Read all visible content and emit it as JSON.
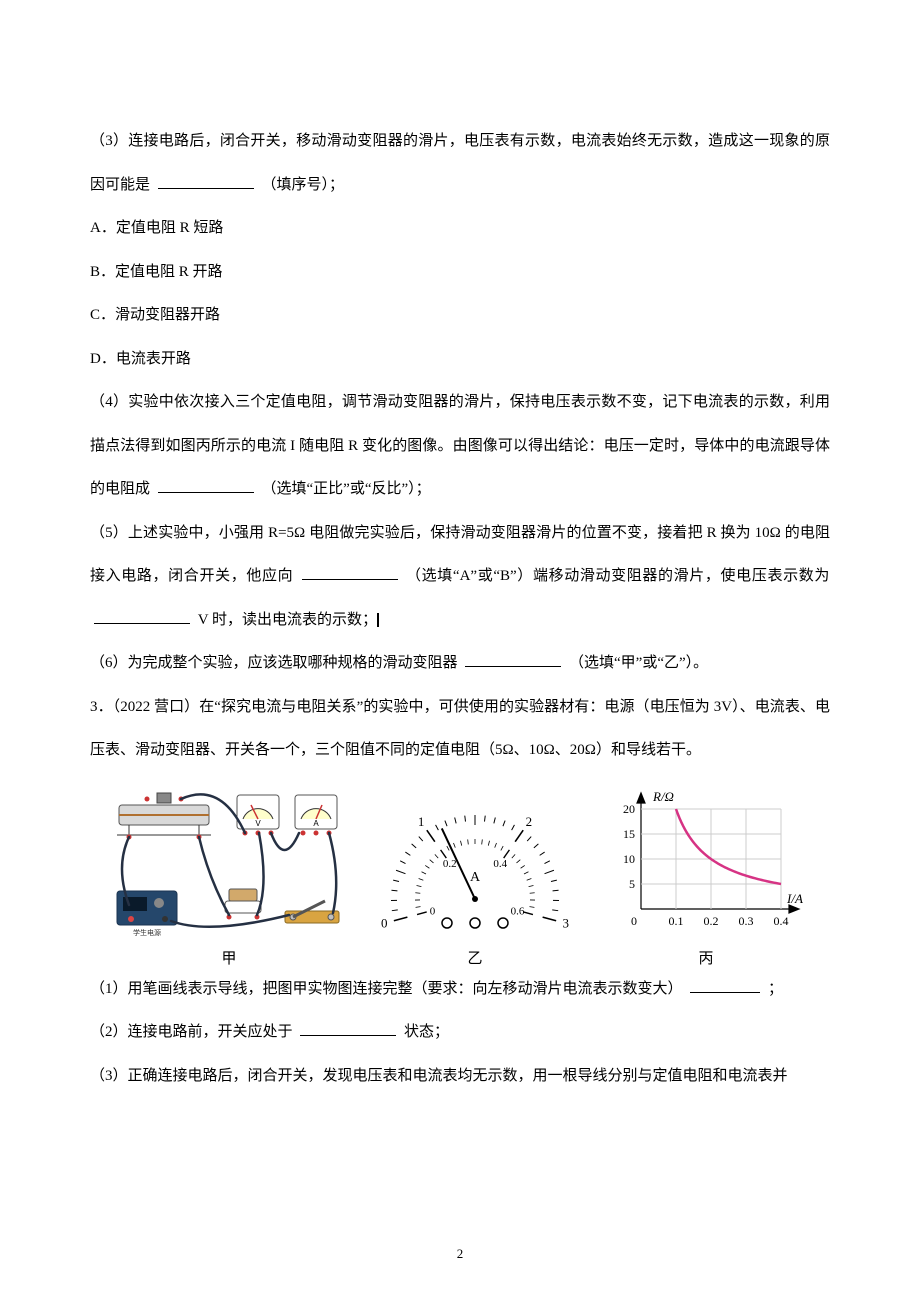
{
  "q3": {
    "text": "（3）连接电路后，闭合开关，移动滑动变阻器的滑片，电压表有示数，电流表始终无示数，造成这一现象的原因可能是 ",
    "tail": "（填序号）；",
    "options": {
      "A": "A．定值电阻 R 短路",
      "B": "B．定值电阻 R 开路",
      "C": "C．滑动变阻器开路",
      "D": "D．电流表开路"
    }
  },
  "q4": {
    "text1": "（4）实验中依次接入三个定值电阻，调节滑动变阻器的滑片，保持电压表示数不变，记下电流表的示数，利用描点法得到如图丙所示的电流 I 随电阻 R 变化的图像。由图像可以得出结论：电压一定时，导体中的电流跟导体的电阻成 ",
    "tail1": "（选填“正比”或“反比”）；"
  },
  "q5": {
    "text1": "（5）上述实验中，小强用 R=5Ω 电阻做完实验后，保持滑动变阻器滑片的位置不变，接着把 R 换为 10Ω 的电阻接入电路，闭合开关，他应向 ",
    "mid1": "（选填“A”或“B”）端移动滑动变阻器的滑片，使电压表示数为 ",
    "tail1": "V 时，读出电流表的示数；"
  },
  "q6": {
    "text1": "（6）为完成整个实验，应该选取哪种规格的滑动变阻器 ",
    "tail1": "（选填“甲”或“乙”）。"
  },
  "p3": {
    "intro1": "3．（2022 营口）在“探究电流与电阻关系”的实验中，可供使用的实验器材有：电源（电压恒为 3V）、电流表、电压表、滑动变阻器、开关各一个，三个阻值不同的定值电阻（5Ω、10Ω、20Ω）和导线若干。",
    "sub1a": "（1）用笔画线表示导线，把图甲实物图连接完整（要求：向左移动滑片电流表示数变大）",
    "sub1b": "；",
    "sub2a": "（2）连接电路前，开关应处于",
    "sub2b": "状态；",
    "sub3": "（3）正确连接电路后，闭合开关，发现电压表和电流表均无示数，用一根导线分别与定值电阻和电流表并"
  },
  "figlabels": {
    "a": "甲",
    "b": "乙",
    "c": "丙"
  },
  "chart": {
    "type": "line",
    "xlabel": "I/A",
    "ylabel": "R/Ω",
    "x_ticks": [
      "0",
      "0.1",
      "0.2",
      "0.3",
      "0.4"
    ],
    "y_ticks": [
      "5",
      "10",
      "15",
      "20"
    ],
    "series_color": "#d63384",
    "grid_color": "#cccccc",
    "axis_color": "#000000",
    "points": [
      [
        0.1,
        20
      ],
      [
        0.15,
        13.3
      ],
      [
        0.2,
        10
      ],
      [
        0.3,
        6.7
      ],
      [
        0.4,
        5
      ]
    ]
  },
  "ammeter": {
    "outer_scale": [
      "0",
      "1",
      "2",
      "3"
    ],
    "inner_scale": [
      "0",
      "0.2",
      "0.4",
      "0.6"
    ],
    "unit": "A"
  },
  "pagenum": "2"
}
